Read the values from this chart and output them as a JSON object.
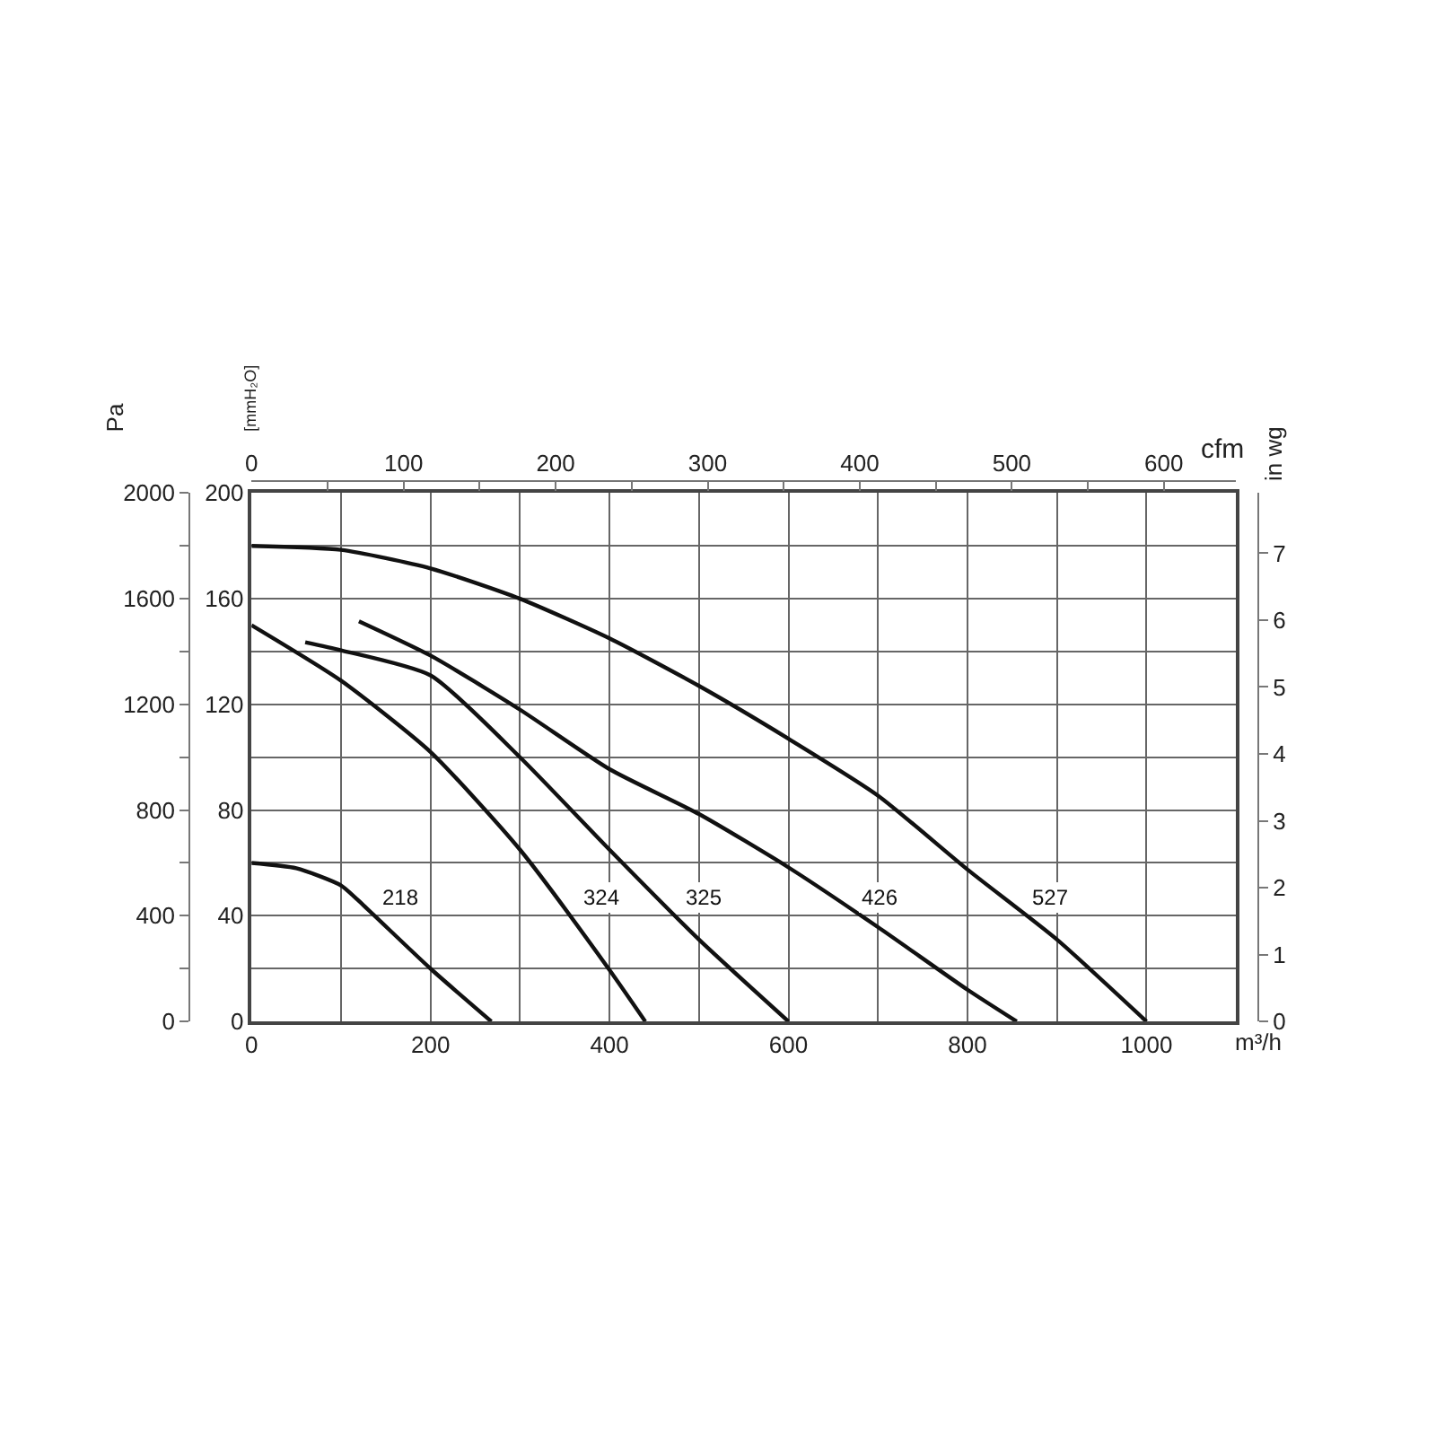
{
  "chart_data": {
    "type": "line",
    "xlabel": "m³/h",
    "x2label": "cfm",
    "ylabel": "Pa",
    "y2label": "[mmH₂O]",
    "y3label": "in wg",
    "xlim": [
      0,
      1100
    ],
    "xticks": [
      0,
      {
        "value": 100,
        "label": null
      },
      200,
      {
        "value": 300,
        "label": null
      },
      400,
      {
        "value": 500,
        "label": null
      },
      600,
      {
        "value": 700,
        "label": null
      },
      800,
      {
        "value": 900,
        "label": null
      },
      1000,
      {
        "value": 1100,
        "label": null
      }
    ],
    "x2lim": [
      0,
      647.4
    ],
    "x2ticks": [
      0,
      {
        "value": 50,
        "label": null
      },
      100,
      {
        "value": 150,
        "label": null
      },
      200,
      {
        "value": 250,
        "label": null
      },
      300,
      {
        "value": 350,
        "label": null
      },
      400,
      {
        "value": 450,
        "label": null
      },
      500,
      {
        "value": 550,
        "label": null
      },
      600
    ],
    "ylim": [
      0,
      2000
    ],
    "yticks": [
      0,
      {
        "value": 200,
        "label": null
      },
      400,
      {
        "value": 600,
        "label": null
      },
      800,
      {
        "value": 1000,
        "label": null
      },
      1200,
      {
        "value": 1400,
        "label": null
      },
      1600,
      {
        "value": 1800,
        "label": null
      },
      2000
    ],
    "y2lim": [
      0,
      200
    ],
    "y2ticks": [
      0,
      40,
      80,
      120,
      160,
      200
    ],
    "y3lim": [
      0,
      7.9
    ],
    "y3ticks": [
      0,
      1,
      2,
      3,
      4,
      5,
      6,
      7
    ],
    "grid": true,
    "marker": "none",
    "line_style": "solid",
    "legend": false,
    "series": [
      {
        "name": "218",
        "color": "#111111",
        "x": [
          0,
          50,
          100,
          125,
          200,
          268
        ],
        "values": [
          600,
          580,
          515,
          440,
          200,
          0
        ]
      },
      {
        "name": "324",
        "color": "#111111",
        "x": [
          0,
          100,
          200,
          300,
          400,
          440
        ],
        "values": [
          1500,
          1290,
          1020,
          650,
          195,
          0
        ]
      },
      {
        "name": "325",
        "color": "#111111",
        "x": [
          60,
          100,
          200,
          300,
          400,
          500,
          600
        ],
        "values": [
          1435,
          1405,
          1310,
          1000,
          650,
          310,
          0
        ]
      },
      {
        "name": "426",
        "color": "#111111",
        "x": [
          120,
          200,
          300,
          400,
          500,
          600,
          700,
          800,
          855
        ],
        "values": [
          1515,
          1385,
          1180,
          955,
          785,
          583,
          357,
          120,
          0
        ]
      },
      {
        "name": "527",
        "color": "#111111",
        "x": [
          0,
          100,
          200,
          300,
          400,
          500,
          600,
          700,
          800,
          900,
          1000
        ],
        "values": [
          1800,
          1785,
          1715,
          1600,
          1450,
          1270,
          1070,
          855,
          575,
          310,
          0
        ]
      }
    ]
  }
}
